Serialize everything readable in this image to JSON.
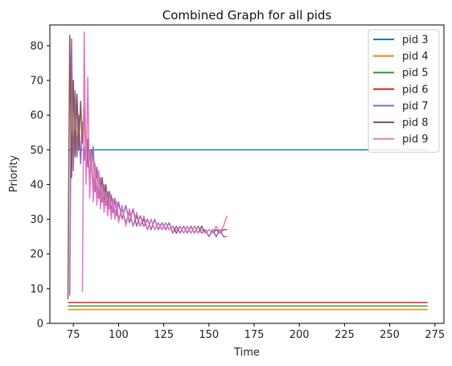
{
  "chart_data": {
    "type": "line",
    "title": "Combined Graph for all pids",
    "xlabel": "Time",
    "ylabel": "Priority",
    "xlim": [
      62,
      280
    ],
    "ylim": [
      0,
      86
    ],
    "xticks": [
      75,
      100,
      125,
      150,
      175,
      200,
      225,
      250,
      275
    ],
    "yticks": [
      0,
      10,
      20,
      30,
      40,
      50,
      60,
      70,
      80
    ],
    "grid": false,
    "legend_position": "top-right",
    "series": [
      {
        "name": "pid 3",
        "color": "#1f77b4",
        "x": [
          72,
          271
        ],
        "y": [
          50,
          50
        ]
      },
      {
        "name": "pid 4",
        "color": "#ff7f0e",
        "x": [
          72,
          271
        ],
        "y": [
          4,
          4
        ]
      },
      {
        "name": "pid 5",
        "color": "#2ca02c",
        "x": [
          72,
          271
        ],
        "y": [
          5,
          5
        ]
      },
      {
        "name": "pid 6",
        "color": "#d62728",
        "x": [
          72,
          271
        ],
        "y": [
          6,
          6
        ]
      },
      {
        "name": "pid 7",
        "color": "#9467bd",
        "x": [
          73,
          74,
          75,
          76,
          77,
          78,
          79,
          80,
          81,
          82,
          83,
          84,
          85,
          86,
          87,
          88,
          89,
          90,
          91,
          92,
          93,
          94,
          95,
          96,
          97,
          98,
          99,
          100,
          102,
          104,
          106,
          108,
          110,
          112,
          114,
          116,
          118,
          120,
          122,
          124,
          126,
          128,
          130,
          132,
          134,
          136,
          138,
          140,
          142,
          144,
          146,
          148,
          150,
          152,
          154,
          156,
          158,
          160
        ],
        "y": [
          8,
          82,
          44,
          67,
          48,
          60,
          46,
          58,
          47,
          54,
          45,
          50,
          44,
          51,
          38,
          45,
          36,
          42,
          35,
          40,
          34,
          38,
          33,
          37,
          32,
          36,
          31,
          35,
          30,
          34,
          29,
          33,
          28,
          31,
          28,
          30,
          27,
          30,
          27,
          29,
          27,
          29,
          26,
          28,
          26,
          28,
          26,
          28,
          26,
          28,
          26,
          27,
          25,
          27,
          25,
          27,
          25,
          25
        ]
      },
      {
        "name": "pid 8",
        "color": "#8c564b",
        "x": [
          72,
          73,
          74,
          75,
          76,
          77,
          78,
          79,
          80,
          81,
          82,
          83,
          84,
          85,
          86,
          87,
          88,
          89,
          90,
          91,
          92,
          93,
          94,
          95,
          96,
          97,
          98,
          99,
          100,
          102,
          104,
          106,
          108,
          110,
          112,
          114,
          116,
          118,
          120,
          122,
          124,
          126,
          128,
          130,
          132,
          134,
          136,
          138,
          140,
          142,
          144,
          146,
          148,
          150,
          152,
          154,
          156,
          158,
          160
        ],
        "y": [
          7,
          83,
          42,
          70,
          48,
          66,
          50,
          64,
          52,
          62,
          46,
          53,
          40,
          50,
          38,
          46,
          36,
          44,
          35,
          42,
          34,
          40,
          33,
          38,
          32,
          36,
          31,
          34,
          30,
          33,
          29,
          32,
          28,
          31,
          28,
          30,
          27,
          30,
          27,
          29,
          27,
          29,
          27,
          28,
          26,
          28,
          26,
          28,
          26,
          28,
          26,
          28,
          26,
          27,
          26,
          27,
          26,
          27,
          27
        ]
      },
      {
        "name": "pid 9",
        "color": "#e377c2",
        "x": [
          80,
          81,
          82,
          83,
          84,
          85,
          86,
          87,
          88,
          89,
          90,
          91,
          92,
          93,
          94,
          95,
          96,
          97,
          98,
          99,
          100,
          102,
          104,
          106,
          108,
          110,
          112,
          114,
          116,
          118,
          120,
          122,
          124,
          126,
          128,
          130,
          132,
          134,
          136,
          138,
          140,
          142,
          144,
          146,
          148,
          150,
          152,
          154,
          156,
          158,
          160
        ],
        "y": [
          9,
          84,
          40,
          71,
          36,
          49,
          35,
          46,
          34,
          44,
          33,
          40,
          32,
          38,
          31,
          37,
          30,
          36,
          30,
          35,
          29,
          34,
          28,
          33,
          28,
          32,
          28,
          31,
          27,
          30,
          27,
          29,
          27,
          29,
          27,
          28,
          27,
          28,
          26,
          28,
          26,
          28,
          26,
          27,
          26,
          27,
          26,
          28,
          26,
          28,
          31
        ]
      }
    ]
  }
}
